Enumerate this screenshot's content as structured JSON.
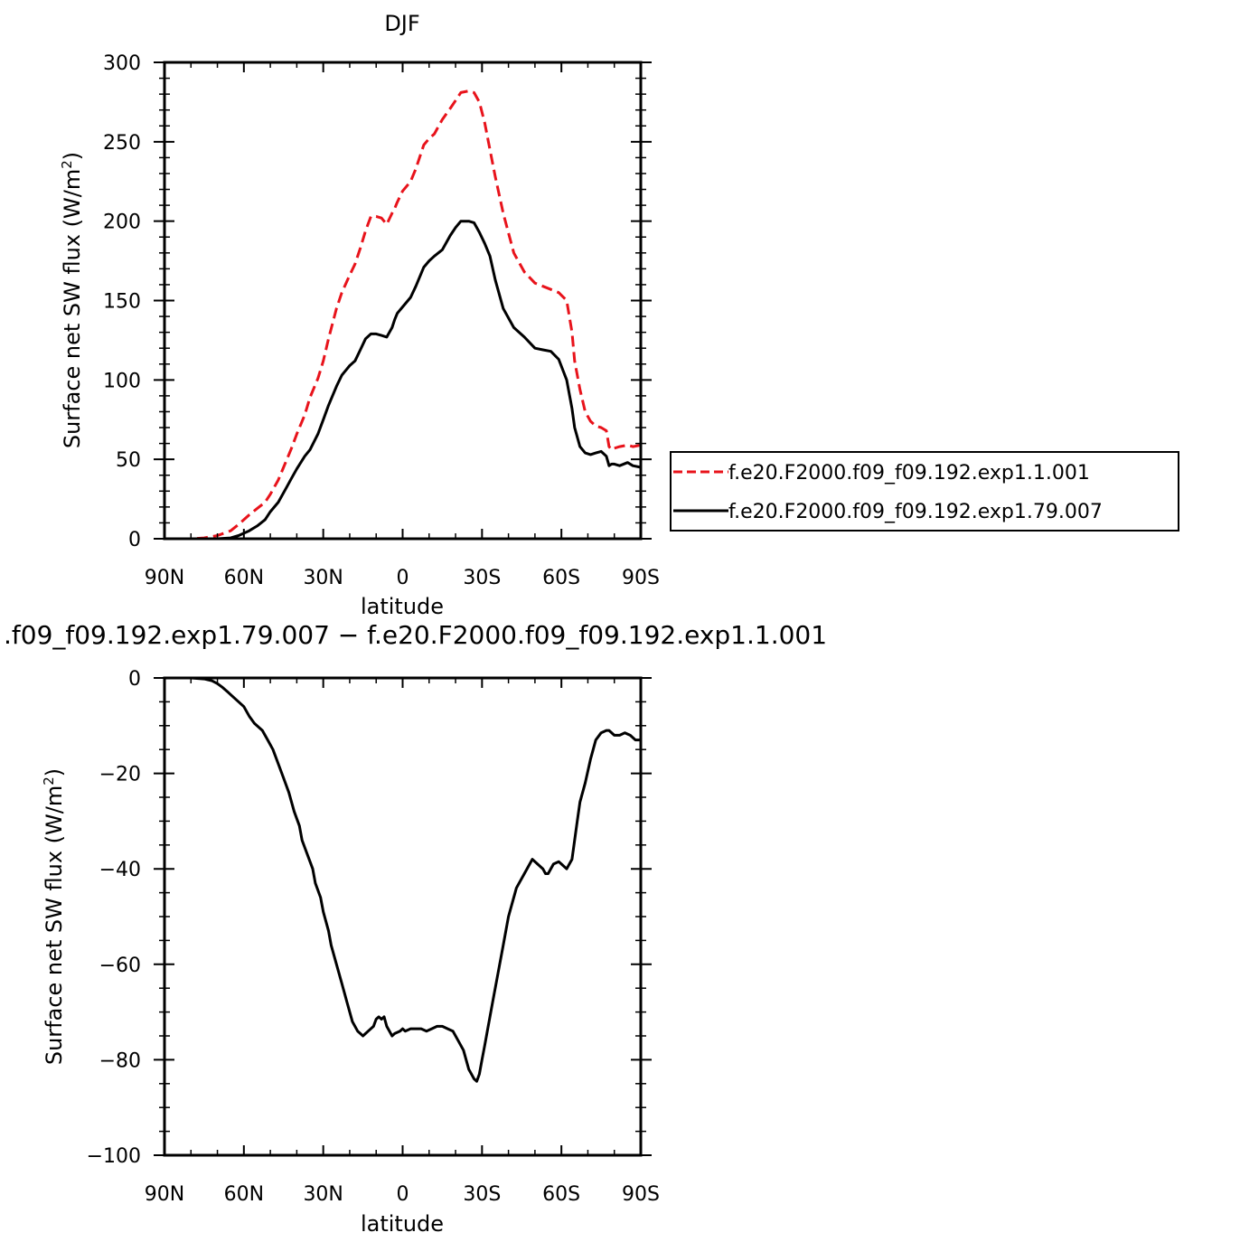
{
  "chart_data": [
    {
      "type": "line",
      "title": "DJF",
      "xlabel": "latitude",
      "ylabel": "Surface net SW flux (W/m²)",
      "ylabel_text": "Surface net SW flux (W/m",
      "ylabel_sup": "2",
      "ylabel_close": ")",
      "xlim": [
        90,
        -90
      ],
      "ylim": [
        0,
        300
      ],
      "xticks": [
        90,
        60,
        30,
        0,
        -30,
        -60,
        -90
      ],
      "xticklabels": [
        "90N",
        "60N",
        "30N",
        "0",
        "30S",
        "60S",
        "90S"
      ],
      "yticks": [
        0,
        50,
        100,
        150,
        200,
        250,
        300
      ],
      "yticklabels": [
        "0",
        "50",
        "100",
        "150",
        "200",
        "250",
        "300"
      ],
      "legend_position": "right",
      "series": [
        {
          "name": "f.e20.F2000.f09_f09.192.exp1.1.001",
          "color": "#e8131b",
          "style": "dashed",
          "x": [
            90,
            80,
            75,
            70,
            65,
            62,
            58,
            55,
            52,
            50,
            47,
            44,
            42,
            40,
            37,
            35,
            32,
            30,
            28,
            25,
            23,
            20,
            18,
            16,
            14,
            12,
            10,
            8,
            6,
            4,
            3,
            2,
            0,
            -3,
            -5,
            -8,
            -10,
            -12,
            -15,
            -18,
            -20,
            -22,
            -25,
            -27,
            -29,
            -31,
            -33,
            -35,
            -38,
            -42,
            -46,
            -50,
            -53,
            -56,
            -59,
            -62,
            -64,
            -65,
            -67,
            -69,
            -71,
            -73,
            -75,
            -77,
            -78,
            -79,
            -80,
            -82,
            -85,
            -87,
            -90
          ],
          "y": [
            0,
            0,
            0.5,
            2,
            5,
            9,
            15,
            19,
            23,
            28,
            37,
            49,
            57,
            66,
            78,
            89,
            101,
            112,
            126,
            145,
            155,
            166,
            173,
            183,
            194,
            203,
            203,
            202,
            198,
            205,
            208,
            212,
            219,
            225,
            233,
            248,
            252,
            255,
            264,
            271,
            276,
            281,
            282,
            281,
            275,
            262,
            245,
            228,
            205,
            180,
            168,
            161,
            159,
            157,
            155,
            150,
            130,
            112,
            94,
            80,
            74,
            71,
            70,
            68,
            58,
            56,
            57,
            58,
            59,
            58,
            59
          ]
        },
        {
          "name": "f.e20.F2000.f09_f09.192.exp1.79.007",
          "color": "#000000",
          "style": "solid",
          "x": [
            90,
            80,
            75,
            70,
            65,
            62,
            58,
            55,
            52,
            50,
            47,
            44,
            42,
            40,
            37,
            35,
            32,
            30,
            28,
            25,
            23,
            20,
            18,
            16,
            14,
            12,
            10,
            8,
            6,
            4,
            3,
            2,
            0,
            -3,
            -5,
            -8,
            -10,
            -12,
            -15,
            -18,
            -20,
            -22,
            -25,
            -27,
            -29,
            -31,
            -33,
            -35,
            -38,
            -42,
            -46,
            -50,
            -53,
            -56,
            -59,
            -62,
            -64,
            -65,
            -67,
            -69,
            -71,
            -73,
            -75,
            -77,
            -78,
            -79,
            -80,
            -82,
            -85,
            -87,
            -90
          ],
          "y": [
            0,
            0,
            0,
            0,
            0.5,
            2,
            5,
            8,
            12,
            17,
            23,
            32,
            38,
            44,
            52,
            56,
            66,
            75,
            84,
            96,
            103,
            109,
            112,
            119,
            126,
            129,
            129,
            128,
            127,
            133,
            138,
            142,
            146,
            152,
            159,
            171,
            175,
            178,
            182,
            191,
            196,
            200,
            200,
            199,
            193,
            186,
            178,
            163,
            145,
            133,
            127,
            120,
            119,
            118,
            113,
            100,
            82,
            70,
            58,
            54,
            53,
            54,
            55,
            52,
            46,
            47,
            47,
            46,
            48,
            46,
            45
          ]
        }
      ]
    },
    {
      "type": "line",
      "title": ".f09_f09.192.exp1.79.007 − f.e20.F2000.f09_f09.192.exp1.1.001",
      "xlabel": "latitude",
      "ylabel": "Surface net SW flux (W/m²)",
      "ylabel_text": "Surface net SW flux (W/m",
      "ylabel_sup": "2",
      "ylabel_close": ")",
      "xlim": [
        90,
        -90
      ],
      "ylim": [
        -100,
        0
      ],
      "xticks": [
        90,
        60,
        30,
        0,
        -30,
        -60,
        -90
      ],
      "xticklabels": [
        "90N",
        "60N",
        "30N",
        "0",
        "30S",
        "60S",
        "90S"
      ],
      "yticks": [
        0,
        -20,
        -40,
        -60,
        -80,
        -100
      ],
      "yticklabels": [
        "0",
        "−20",
        "−40",
        "−60",
        "−80",
        "−100"
      ],
      "series": [
        {
          "color": "#000000",
          "style": "solid",
          "x": [
            90,
            80,
            75,
            72,
            70,
            68,
            66,
            63,
            60,
            58,
            56,
            53,
            51,
            49,
            47,
            45,
            43,
            41,
            39,
            38,
            36,
            34,
            33,
            31,
            30,
            28,
            27,
            25,
            23,
            21,
            19,
            17,
            15,
            13,
            11,
            10,
            9,
            8,
            7,
            6,
            5,
            4,
            3,
            1,
            0,
            -1,
            -3,
            -5,
            -7,
            -9,
            -11,
            -13,
            -15,
            -17,
            -19,
            -21,
            -23,
            -25,
            -26,
            -27,
            -28,
            -29,
            -30,
            -31,
            -32,
            -34,
            -36,
            -38,
            -40,
            -43,
            -46,
            -49,
            -51,
            -53,
            -54,
            -55,
            -57,
            -59,
            -60,
            -62,
            -64,
            -66,
            -67,
            -69,
            -71,
            -73,
            -75,
            -77,
            -78,
            -79,
            -80,
            -82,
            -84,
            -86,
            -88,
            -90
          ],
          "y": [
            0,
            0,
            -0.2,
            -0.6,
            -1.2,
            -2,
            -3,
            -4.5,
            -6,
            -8,
            -9.5,
            -11,
            -13,
            -15,
            -18,
            -21,
            -24,
            -28,
            -31,
            -34,
            -37,
            -40,
            -43,
            -46,
            -49,
            -53,
            -56,
            -60,
            -64,
            -68,
            -72,
            -74,
            -75,
            -74,
            -73,
            -71.5,
            -71,
            -71.5,
            -71,
            -73,
            -74,
            -75,
            -74.5,
            -74,
            -73.5,
            -74,
            -73.5,
            -73.5,
            -73.5,
            -74,
            -73.5,
            -73,
            -73,
            -73.5,
            -74,
            -76,
            -78,
            -82,
            -83,
            -84,
            -84.5,
            -83,
            -80,
            -77,
            -74,
            -68,
            -62,
            -56,
            -50,
            -44,
            -41,
            -38,
            -39,
            -40,
            -41,
            -41,
            -39,
            -38.5,
            -39,
            -40,
            -38,
            -30,
            -26,
            -22,
            -17,
            -13,
            -11.5,
            -11,
            -11,
            -11.5,
            -12,
            -12,
            -11.5,
            -12,
            -13,
            -13
          ]
        }
      ]
    }
  ]
}
